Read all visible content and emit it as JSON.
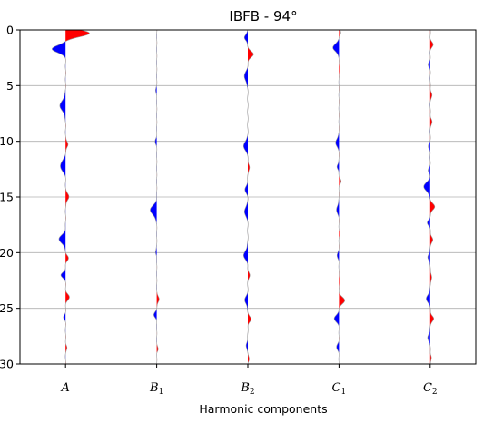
{
  "chart_data": {
    "type": "area",
    "title": "IBFB - 94°",
    "xlabel": "Harmonic components",
    "ylabel": "",
    "categories": [
      {
        "main": "A",
        "sub": ""
      },
      {
        "main": "B",
        "sub": "1"
      },
      {
        "main": "B",
        "sub": "2"
      },
      {
        "main": "C",
        "sub": "1"
      },
      {
        "main": "C",
        "sub": "2"
      }
    ],
    "ylim": [
      30,
      0
    ],
    "yticks": [
      0,
      5,
      10,
      15,
      20,
      25,
      30
    ],
    "ytick_labels": [
      "0",
      "5",
      "10",
      "15",
      "20",
      "25",
      "30"
    ],
    "grid": "horizontal",
    "positive_color": "#ff0000",
    "negative_color": "#0000ff",
    "wiggle_scale_note": "",
    "series": [
      {
        "category": "A",
        "lobes": [
          {
            "d": 0.3,
            "a": 0.26,
            "w": 0.45
          },
          {
            "d": 1.7,
            "a": -0.15,
            "w": 0.45
          },
          {
            "d": 6.8,
            "a": -0.06,
            "w": 0.7
          },
          {
            "d": 10.3,
            "a": 0.03,
            "w": 0.35
          },
          {
            "d": 12.2,
            "a": -0.06,
            "w": 0.6
          },
          {
            "d": 15.0,
            "a": 0.04,
            "w": 0.4
          },
          {
            "d": 18.8,
            "a": -0.07,
            "w": 0.55
          },
          {
            "d": 20.5,
            "a": 0.03,
            "w": 0.35
          },
          {
            "d": 22.0,
            "a": -0.05,
            "w": 0.35
          },
          {
            "d": 24.0,
            "a": 0.04,
            "w": 0.4
          },
          {
            "d": 25.8,
            "a": -0.02,
            "w": 0.3
          },
          {
            "d": 28.5,
            "a": 0.015,
            "w": 0.3
          }
        ]
      },
      {
        "category": "B1",
        "lobes": [
          {
            "d": 5.5,
            "a": -0.01,
            "w": 0.4
          },
          {
            "d": 10.0,
            "a": -0.015,
            "w": 0.4
          },
          {
            "d": 16.2,
            "a": -0.07,
            "w": 0.6
          },
          {
            "d": 20.0,
            "a": -0.015,
            "w": 0.3
          },
          {
            "d": 24.2,
            "a": 0.03,
            "w": 0.35
          },
          {
            "d": 25.6,
            "a": -0.03,
            "w": 0.35
          },
          {
            "d": 28.7,
            "a": 0.015,
            "w": 0.3
          }
        ]
      },
      {
        "category": "B2",
        "lobes": [
          {
            "d": 0.7,
            "a": -0.04,
            "w": 0.35
          },
          {
            "d": 2.2,
            "a": 0.06,
            "w": 0.4
          },
          {
            "d": 4.2,
            "a": -0.04,
            "w": 0.55
          },
          {
            "d": 10.4,
            "a": -0.05,
            "w": 0.5
          },
          {
            "d": 12.3,
            "a": 0.02,
            "w": 0.35
          },
          {
            "d": 14.3,
            "a": -0.03,
            "w": 0.45
          },
          {
            "d": 16.3,
            "a": -0.04,
            "w": 0.5
          },
          {
            "d": 20.2,
            "a": -0.045,
            "w": 0.55
          },
          {
            "d": 22.0,
            "a": 0.02,
            "w": 0.35
          },
          {
            "d": 24.3,
            "a": -0.035,
            "w": 0.45
          },
          {
            "d": 26.0,
            "a": 0.035,
            "w": 0.35
          },
          {
            "d": 28.3,
            "a": -0.02,
            "w": 0.35
          },
          {
            "d": 29.6,
            "a": 0.015,
            "w": 0.3
          }
        ]
      },
      {
        "category": "C1",
        "lobes": [
          {
            "d": 0.2,
            "a": 0.02,
            "w": 0.3
          },
          {
            "d": 1.6,
            "a": -0.07,
            "w": 0.45
          },
          {
            "d": 3.5,
            "a": 0.015,
            "w": 0.35
          },
          {
            "d": 10.1,
            "a": -0.04,
            "w": 0.45
          },
          {
            "d": 12.3,
            "a": -0.025,
            "w": 0.3
          },
          {
            "d": 13.6,
            "a": 0.02,
            "w": 0.35
          },
          {
            "d": 16.1,
            "a": -0.03,
            "w": 0.45
          },
          {
            "d": 18.3,
            "a": 0.01,
            "w": 0.35
          },
          {
            "d": 20.3,
            "a": -0.02,
            "w": 0.4
          },
          {
            "d": 22.5,
            "a": 0.015,
            "w": 0.35
          },
          {
            "d": 24.3,
            "a": 0.06,
            "w": 0.45
          },
          {
            "d": 25.9,
            "a": -0.05,
            "w": 0.45
          },
          {
            "d": 28.5,
            "a": -0.025,
            "w": 0.4
          }
        ]
      },
      {
        "category": "C2",
        "lobes": [
          {
            "d": 1.3,
            "a": 0.03,
            "w": 0.35
          },
          {
            "d": 3.1,
            "a": -0.02,
            "w": 0.35
          },
          {
            "d": 5.8,
            "a": 0.02,
            "w": 0.35
          },
          {
            "d": 8.2,
            "a": 0.02,
            "w": 0.35
          },
          {
            "d": 10.5,
            "a": -0.02,
            "w": 0.35
          },
          {
            "d": 12.6,
            "a": -0.02,
            "w": 0.35
          },
          {
            "d": 14.1,
            "a": -0.07,
            "w": 0.55
          },
          {
            "d": 15.9,
            "a": 0.05,
            "w": 0.4
          },
          {
            "d": 17.3,
            "a": -0.03,
            "w": 0.35
          },
          {
            "d": 18.8,
            "a": 0.03,
            "w": 0.35
          },
          {
            "d": 20.4,
            "a": -0.03,
            "w": 0.35
          },
          {
            "d": 22.2,
            "a": 0.02,
            "w": 0.35
          },
          {
            "d": 24.1,
            "a": -0.045,
            "w": 0.45
          },
          {
            "d": 25.9,
            "a": 0.04,
            "w": 0.35
          },
          {
            "d": 27.6,
            "a": -0.03,
            "w": 0.4
          },
          {
            "d": 29.4,
            "a": 0.015,
            "w": 0.3
          }
        ]
      }
    ]
  }
}
